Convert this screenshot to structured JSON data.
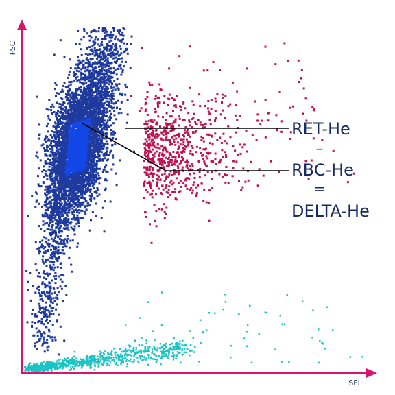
{
  "chart_data": {
    "type": "scatter",
    "title": "",
    "xlabel": "SFL",
    "ylabel": "FSC",
    "grid": false,
    "xlim": [
      0,
      100
    ],
    "ylim": [
      0,
      100
    ],
    "series": [
      {
        "color": "#1f3a9e",
        "core_color": "#1346e6",
        "points_approx": 4500,
        "center": [
          16,
          65
        ],
        "spread": "dense elongated cloud extending up to y=100 and tailing down to y=10"
      },
      {
        "color": "#c0134f",
        "points_approx": 700,
        "center": [
          35,
          63
        ],
        "spread": "sparse cloud right of the blue cluster, x 25-75"
      },
      {
        "color": "#19c4c4",
        "points_approx": 900,
        "center": [
          22,
          5
        ],
        "spread": "thin diagonal band near the x-axis, x 3-60"
      }
    ]
  },
  "annotations": {
    "ret_he": "RET-He",
    "minus": "–",
    "rbc_he": "RBC-He",
    "equals": "=",
    "delta_he": "DELTA-He"
  },
  "colors": {
    "axis": "#d6156f",
    "text": "#1a2a63"
  }
}
